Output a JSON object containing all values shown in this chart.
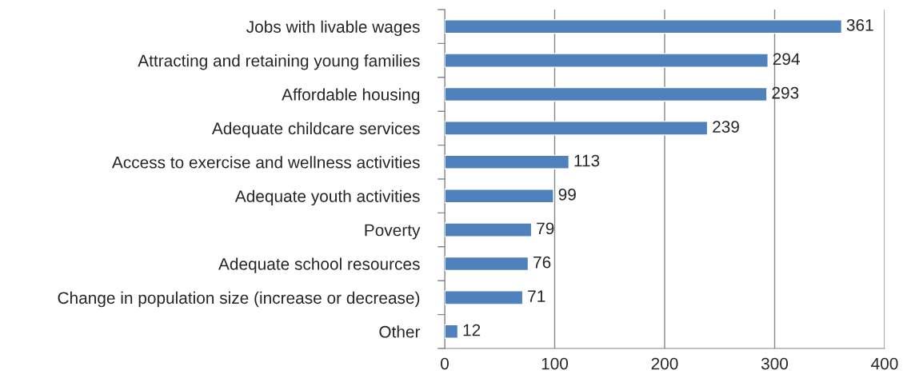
{
  "chart_data": {
    "type": "bar",
    "orientation": "horizontal",
    "categories": [
      "Jobs with livable wages",
      "Attracting and retaining young families",
      "Affordable housing",
      "Adequate childcare services",
      "Access to exercise and wellness activities",
      "Adequate youth activities",
      "Poverty",
      "Adequate school resources",
      "Change in population size (increase or decrease)",
      "Other"
    ],
    "values": [
      361,
      294,
      293,
      239,
      113,
      99,
      79,
      76,
      71,
      12
    ],
    "color": "#4f81bd",
    "xlim": [
      0,
      400
    ],
    "xticks": [
      0,
      100,
      200,
      300,
      400
    ],
    "grid": "x",
    "data_labels": true
  }
}
